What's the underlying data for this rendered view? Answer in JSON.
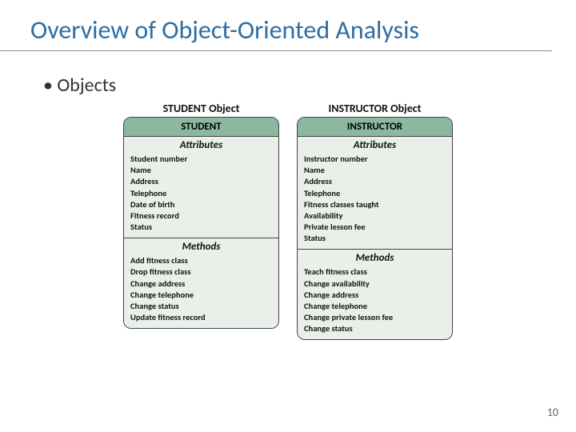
{
  "slide": {
    "title": "Overview of Object-Oriented Analysis",
    "bullet": "Objects",
    "page_number": "10"
  },
  "style": {
    "title_color": "#2e6da4",
    "title_fontsize": 32,
    "card_header_bg": "#8cb8a0",
    "card_section_bg": "#e9efe9",
    "card_border": "#444444",
    "item_fontsize": 10.5
  },
  "diagram": {
    "columns": [
      {
        "object_title": "STUDENT Object",
        "name": "STUDENT",
        "attributes_label": "Attributes",
        "attributes": [
          "Student number",
          "Name",
          "Address",
          "Telephone",
          "Date of birth",
          "Fitness record",
          "Status"
        ],
        "methods_label": "Methods",
        "methods": [
          "Add fitness class",
          "Drop fitness class",
          "Change address",
          "Change telephone",
          "Change status",
          "Update fitness record"
        ]
      },
      {
        "object_title": "INSTRUCTOR Object",
        "name": "INSTRUCTOR",
        "attributes_label": "Attributes",
        "attributes": [
          "Instructor number",
          "Name",
          "Address",
          "Telephone",
          "Fitness classes taught",
          "Availability",
          "Private lesson fee",
          "Status"
        ],
        "methods_label": "Methods",
        "methods": [
          "Teach fitness class",
          "Change availability",
          "Change address",
          "Change telephone",
          "Change private lesson fee",
          "Change status"
        ]
      }
    ]
  }
}
